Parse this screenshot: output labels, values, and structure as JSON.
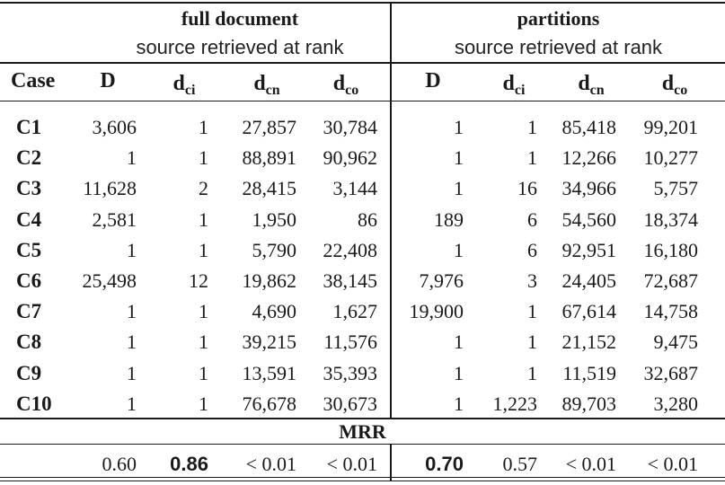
{
  "groups": {
    "full_document": {
      "title": "full document",
      "subtitle": "source retrieved at rank"
    },
    "partitions": {
      "title": "partitions",
      "subtitle": "source retrieved at rank"
    }
  },
  "columns": {
    "case": "Case",
    "D": "D",
    "d": "d",
    "ci": "ci",
    "cn": "cn",
    "co": "co"
  },
  "rows": [
    {
      "case": "C1",
      "full": [
        "3,606",
        "1",
        "27,857",
        "30,784"
      ],
      "part": [
        "1",
        "1",
        "85,418",
        "99,201"
      ]
    },
    {
      "case": "C2",
      "full": [
        "1",
        "1",
        "88,891",
        "90,962"
      ],
      "part": [
        "1",
        "1",
        "12,266",
        "10,277"
      ]
    },
    {
      "case": "C3",
      "full": [
        "11,628",
        "2",
        "28,415",
        "3,144"
      ],
      "part": [
        "1",
        "16",
        "34,966",
        "5,757"
      ]
    },
    {
      "case": "C4",
      "full": [
        "2,581",
        "1",
        "1,950",
        "86"
      ],
      "part": [
        "189",
        "6",
        "54,560",
        "18,374"
      ]
    },
    {
      "case": "C5",
      "full": [
        "1",
        "1",
        "5,790",
        "22,408"
      ],
      "part": [
        "1",
        "6",
        "92,951",
        "16,180"
      ]
    },
    {
      "case": "C6",
      "full": [
        "25,498",
        "12",
        "19,862",
        "38,145"
      ],
      "part": [
        "7,976",
        "3",
        "24,405",
        "72,687"
      ]
    },
    {
      "case": "C7",
      "full": [
        "1",
        "1",
        "4,690",
        "1,627"
      ],
      "part": [
        "19,900",
        "1",
        "67,614",
        "14,758"
      ]
    },
    {
      "case": "C8",
      "full": [
        "1",
        "1",
        "39,215",
        "11,576"
      ],
      "part": [
        "1",
        "1",
        "21,152",
        "9,475"
      ]
    },
    {
      "case": "C9",
      "full": [
        "1",
        "1",
        "13,591",
        "35,393"
      ],
      "part": [
        "1",
        "1",
        "11,519",
        "32,687"
      ]
    },
    {
      "case": "C10",
      "full": [
        "1",
        "1",
        "76,678",
        "30,673"
      ],
      "part": [
        "1",
        "1,223",
        "89,703",
        "3,280"
      ]
    }
  ],
  "mrr": {
    "label": "MRR",
    "full": [
      "0.60",
      "0.86",
      "< 0.01",
      "< 0.01"
    ],
    "part": [
      "0.70",
      "0.57",
      "< 0.01",
      "< 0.01"
    ],
    "bold_full": [
      false,
      true,
      false,
      false
    ],
    "bold_part": [
      true,
      false,
      false,
      false
    ]
  }
}
